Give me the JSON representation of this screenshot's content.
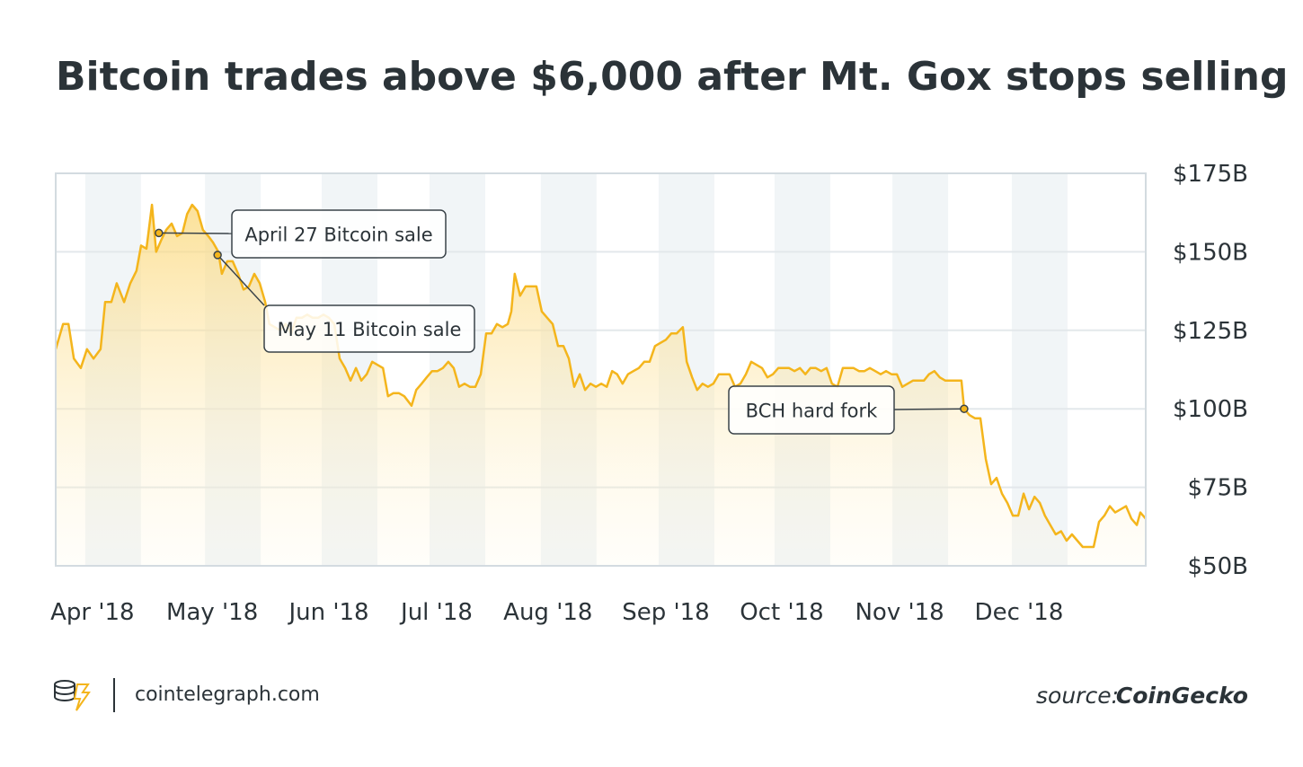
{
  "chart_data": {
    "type": "line",
    "title": "Bitcoin trades above $6,000 after Mt. Gox stops selling",
    "site": "cointelegraph.com",
    "source_prefix": "source:",
    "source": "CoinGecko",
    "color": "#f4b51c",
    "grid": true,
    "xlim": [
      0,
      282.1
    ],
    "ylim": [
      50,
      175
    ],
    "xticks": [
      {
        "value": 9.5,
        "label": "Apr '18"
      },
      {
        "value": 40.5,
        "label": "May '18"
      },
      {
        "value": 70.7,
        "label": "Jun '18"
      },
      {
        "value": 98.6,
        "label": "Jul '18"
      },
      {
        "value": 127.4,
        "label": "Aug '18"
      },
      {
        "value": 157.9,
        "label": "Sep '18"
      },
      {
        "value": 187.9,
        "label": "Oct '18"
      },
      {
        "value": 218.4,
        "label": "Nov '18"
      },
      {
        "value": 249.3,
        "label": "Dec '18"
      }
    ],
    "yticks": [
      {
        "value": 50,
        "label": "$50B"
      },
      {
        "value": 75,
        "label": "$75B"
      },
      {
        "value": 100,
        "label": "$100B"
      },
      {
        "value": 125,
        "label": "$125B"
      },
      {
        "value": 150,
        "label": "$150B"
      },
      {
        "value": 175,
        "label": "$175B"
      }
    ],
    "annotations": [
      {
        "label": "April 27 Bitcoin sale",
        "x": 26.7,
        "y": 156
      },
      {
        "label": "May 11 Bitcoin sale",
        "x": 41.9,
        "y": 149
      },
      {
        "label": "BCH hard fork",
        "x": 235.1,
        "y": 100
      }
    ],
    "x": [
      0,
      1.9,
      3.3,
      4.7,
      6.5,
      8.1,
      9.8,
      11.6,
      12.8,
      14.4,
      15.8,
      17.7,
      19.3,
      20.9,
      22.1,
      23.5,
      24.9,
      26,
      27.4,
      28.6,
      30,
      31.4,
      32.8,
      34,
      35.3,
      36.7,
      38.1,
      39.5,
      40.7,
      42.1,
      43,
      44.4,
      45.8,
      47.2,
      48.6,
      50,
      51.4,
      52.8,
      54.2,
      55.3,
      56.7,
      58.1,
      59.5,
      60.9,
      62.3,
      63.7,
      65.1,
      66.5,
      67.9,
      69.3,
      70.7,
      72.1,
      73.5,
      74.9,
      76.3,
      77.7,
      79.1,
      80.5,
      81.9,
      83.3,
      84.7,
      86,
      87.4,
      88.8,
      90.2,
      92.1,
      93.3,
      94.7,
      96,
      97.4,
      98.8,
      100.2,
      101.6,
      103,
      104.4,
      105.8,
      107.2,
      108.6,
      110,
      111.4,
      112.8,
      114.2,
      115.6,
      117,
      117.9,
      118.8,
      120.2,
      121.6,
      123,
      124.4,
      125.8,
      127.2,
      128.6,
      130,
      131.4,
      132.8,
      134.2,
      135.6,
      137,
      138.4,
      139.8,
      141.2,
      142.6,
      144,
      145.3,
      146.7,
      148.1,
      149.5,
      150.9,
      152.3,
      153.7,
      155.1,
      156.5,
      157.9,
      159.3,
      160.7,
      162.3,
      163.3,
      164.7,
      166,
      167.4,
      168.8,
      170.2,
      171.6,
      173,
      174.4,
      175.8,
      177.2,
      178.6,
      180,
      181.4,
      182.8,
      184.2,
      185.6,
      187,
      188.4,
      189.8,
      191.2,
      192.6,
      194,
      195.3,
      196.7,
      198.1,
      199.5,
      200.9,
      202.3,
      203.7,
      205.1,
      206.5,
      207.9,
      209.3,
      210.7,
      212.1,
      213.5,
      214.9,
      216.3,
      217.7,
      219.1,
      220.5,
      221.9,
      223.3,
      224.7,
      226,
      227.4,
      228.8,
      230.2,
      231.6,
      233,
      234.4,
      235.1,
      236.5,
      237.9,
      239.3,
      240.7,
      242.1,
      243.5,
      244.9,
      246.3,
      247.7,
      249.1,
      250.5,
      251.9,
      253.3,
      254.7,
      256,
      257.4,
      258.8,
      260.2,
      261.6,
      263,
      264.4,
      265.8,
      267.2,
      268.6,
      270,
      271.4,
      272.8,
      274.2,
      275.6,
      277,
      278.4,
      279.8,
      280.7,
      282.1
    ],
    "values": [
      119,
      127,
      127,
      116,
      113,
      119,
      116,
      119,
      134,
      134,
      140,
      134,
      140,
      144,
      152,
      151,
      165,
      150,
      154,
      157,
      159,
      155,
      156,
      162,
      165,
      163,
      157,
      155,
      153,
      150,
      143,
      147,
      147,
      143,
      138,
      139,
      143,
      140,
      134,
      127,
      126,
      125,
      127,
      124,
      129,
      129,
      130,
      129,
      129,
      130,
      129,
      127,
      116,
      113,
      109,
      113,
      109,
      111,
      115,
      114,
      113,
      104,
      105,
      105,
      104,
      101,
      106,
      108,
      110,
      112,
      112,
      113,
      115,
      113,
      107,
      108,
      107,
      107,
      111,
      124,
      124,
      127,
      126,
      127,
      131,
      143,
      136,
      139,
      139,
      139,
      131,
      129,
      127,
      120,
      120,
      116,
      107,
      111,
      106,
      108,
      107,
      108,
      107,
      112,
      111,
      108,
      111,
      112,
      113,
      115,
      115,
      120,
      121,
      122,
      124,
      124,
      126,
      115,
      110,
      106,
      108,
      107,
      108,
      111,
      111,
      111,
      107,
      108,
      111,
      115,
      114,
      113,
      110,
      111,
      113,
      113,
      113,
      112,
      113,
      111,
      113,
      113,
      112,
      113,
      108,
      107,
      113,
      113,
      113,
      112,
      112,
      113,
      112,
      111,
      112,
      111,
      111,
      107,
      108,
      109,
      109,
      109,
      111,
      112,
      110,
      109,
      109,
      109,
      109,
      100,
      98,
      97,
      97,
      84,
      76,
      78,
      73,
      70,
      66,
      66,
      73,
      68,
      72,
      70,
      66,
      63,
      60,
      61,
      58,
      60,
      58,
      56,
      56,
      56,
      64,
      66,
      69,
      67,
      68,
      69,
      65,
      63,
      67,
      65
    ]
  }
}
